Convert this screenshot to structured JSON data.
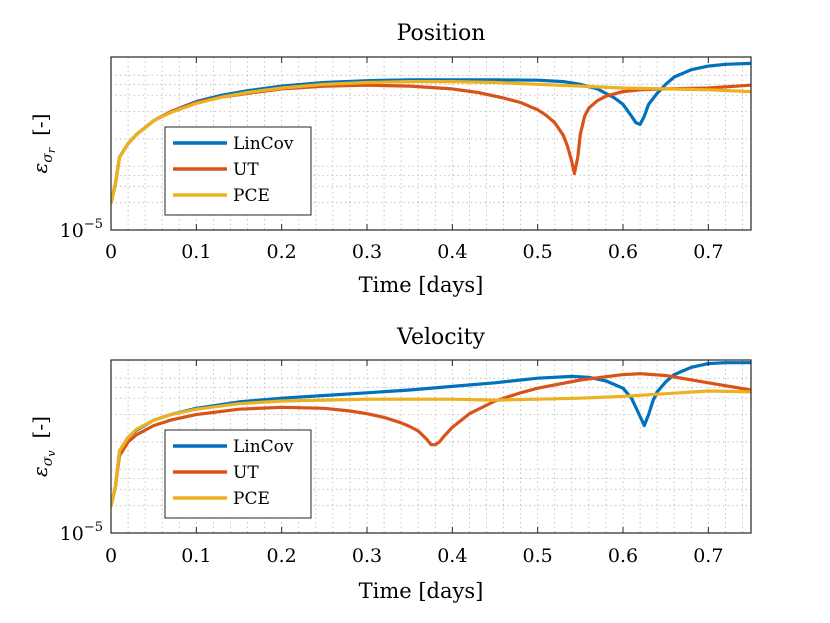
{
  "chart_data": [
    {
      "type": "line",
      "title": "Position",
      "xlabel": "Time [days]",
      "ylabel_main": "ε",
      "ylabel_sub1": "σ",
      "ylabel_sub2": "r",
      "ylabel_units": "[-]",
      "y_scale": "log",
      "xlim": [
        0,
        0.75
      ],
      "x_ticks": [
        "0",
        "0.1",
        "0.2",
        "0.3",
        "0.4",
        "0.5",
        "0.6",
        "0.7"
      ],
      "y_tick_base": "10",
      "y_tick_exp": "−5",
      "ylim_log10": [
        -5,
        -3.1
      ],
      "legend_position": "lower-left",
      "series": [
        {
          "name": "LinCov",
          "color": "#0072BD",
          "x": [
            0,
            0.005,
            0.01,
            0.02,
            0.03,
            0.05,
            0.07,
            0.1,
            0.13,
            0.16,
            0.2,
            0.25,
            0.3,
            0.35,
            0.4,
            0.45,
            0.5,
            0.53,
            0.55,
            0.57,
            0.59,
            0.6,
            0.61,
            0.615,
            0.62,
            0.625,
            0.63,
            0.64,
            0.65,
            0.66,
            0.68,
            0.7,
            0.72,
            0.75
          ],
          "y": [
            -4.7,
            -4.5,
            -4.2,
            -4.05,
            -3.95,
            -3.8,
            -3.7,
            -3.59,
            -3.52,
            -3.47,
            -3.42,
            -3.38,
            -3.36,
            -3.35,
            -3.35,
            -3.35,
            -3.355,
            -3.37,
            -3.4,
            -3.45,
            -3.55,
            -3.62,
            -3.75,
            -3.82,
            -3.84,
            -3.75,
            -3.62,
            -3.5,
            -3.4,
            -3.32,
            -3.24,
            -3.2,
            -3.18,
            -3.17
          ]
        },
        {
          "name": "UT",
          "color": "#D95319",
          "x": [
            0,
            0.005,
            0.01,
            0.02,
            0.03,
            0.05,
            0.07,
            0.1,
            0.13,
            0.16,
            0.2,
            0.25,
            0.3,
            0.35,
            0.4,
            0.43,
            0.46,
            0.48,
            0.5,
            0.51,
            0.52,
            0.53,
            0.535,
            0.54,
            0.543,
            0.547,
            0.55,
            0.555,
            0.56,
            0.57,
            0.58,
            0.6,
            0.62,
            0.65,
            0.7,
            0.75
          ],
          "y": [
            -4.7,
            -4.5,
            -4.2,
            -4.05,
            -3.95,
            -3.8,
            -3.7,
            -3.6,
            -3.54,
            -3.5,
            -3.45,
            -3.42,
            -3.41,
            -3.42,
            -3.45,
            -3.49,
            -3.55,
            -3.6,
            -3.68,
            -3.74,
            -3.82,
            -3.96,
            -4.08,
            -4.25,
            -4.38,
            -4.2,
            -3.95,
            -3.75,
            -3.66,
            -3.58,
            -3.53,
            -3.48,
            -3.46,
            -3.45,
            -3.44,
            -3.41
          ]
        },
        {
          "name": "PCE",
          "color": "#EDB120",
          "x": [
            0,
            0.005,
            0.01,
            0.02,
            0.03,
            0.05,
            0.07,
            0.1,
            0.13,
            0.16,
            0.2,
            0.25,
            0.3,
            0.35,
            0.4,
            0.45,
            0.5,
            0.55,
            0.6,
            0.65,
            0.7,
            0.75
          ],
          "y": [
            -4.7,
            -4.5,
            -4.2,
            -4.05,
            -3.95,
            -3.8,
            -3.71,
            -3.61,
            -3.54,
            -3.49,
            -3.44,
            -3.4,
            -3.38,
            -3.37,
            -3.37,
            -3.38,
            -3.4,
            -3.42,
            -3.44,
            -3.45,
            -3.46,
            -3.48
          ]
        }
      ]
    },
    {
      "type": "line",
      "title": "Velocity",
      "xlabel": "Time [days]",
      "ylabel_main": "ε",
      "ylabel_sub1": "σ",
      "ylabel_sub2": "v",
      "ylabel_units": "[-]",
      "y_scale": "log",
      "xlim": [
        0,
        0.75
      ],
      "x_ticks": [
        "0",
        "0.1",
        "0.2",
        "0.3",
        "0.4",
        "0.5",
        "0.6",
        "0.7"
      ],
      "y_tick_base": "10",
      "y_tick_exp": "−5",
      "ylim_log10": [
        -5,
        -3.1
      ],
      "legend_position": "lower-left",
      "series": [
        {
          "name": "LinCov",
          "color": "#0072BD",
          "x": [
            0,
            0.005,
            0.01,
            0.02,
            0.03,
            0.05,
            0.07,
            0.1,
            0.15,
            0.2,
            0.25,
            0.3,
            0.35,
            0.4,
            0.45,
            0.5,
            0.54,
            0.56,
            0.58,
            0.6,
            0.61,
            0.62,
            0.625,
            0.63,
            0.635,
            0.64,
            0.65,
            0.66,
            0.68,
            0.7,
            0.72,
            0.75
          ],
          "y": [
            -4.7,
            -4.5,
            -4.1,
            -3.95,
            -3.87,
            -3.76,
            -3.7,
            -3.63,
            -3.56,
            -3.52,
            -3.49,
            -3.46,
            -3.43,
            -3.39,
            -3.35,
            -3.3,
            -3.28,
            -3.29,
            -3.33,
            -3.41,
            -3.52,
            -3.72,
            -3.82,
            -3.7,
            -3.55,
            -3.45,
            -3.34,
            -3.26,
            -3.18,
            -3.14,
            -3.13,
            -3.13
          ]
        },
        {
          "name": "UT",
          "color": "#D95319",
          "x": [
            0,
            0.005,
            0.01,
            0.02,
            0.03,
            0.05,
            0.07,
            0.1,
            0.15,
            0.2,
            0.25,
            0.28,
            0.3,
            0.32,
            0.34,
            0.35,
            0.36,
            0.37,
            0.375,
            0.38,
            0.385,
            0.39,
            0.4,
            0.42,
            0.45,
            0.48,
            0.5,
            0.55,
            0.6,
            0.62,
            0.65,
            0.7,
            0.75
          ],
          "y": [
            -4.7,
            -4.5,
            -4.15,
            -4.0,
            -3.92,
            -3.82,
            -3.76,
            -3.7,
            -3.64,
            -3.62,
            -3.63,
            -3.66,
            -3.69,
            -3.73,
            -3.79,
            -3.83,
            -3.88,
            -3.97,
            -4.03,
            -4.03,
            -4.0,
            -3.94,
            -3.84,
            -3.69,
            -3.55,
            -3.46,
            -3.41,
            -3.32,
            -3.26,
            -3.25,
            -3.27,
            -3.35,
            -3.43
          ]
        },
        {
          "name": "PCE",
          "color": "#EDB120",
          "x": [
            0,
            0.005,
            0.01,
            0.02,
            0.03,
            0.05,
            0.07,
            0.1,
            0.15,
            0.2,
            0.25,
            0.3,
            0.35,
            0.4,
            0.45,
            0.5,
            0.55,
            0.6,
            0.65,
            0.7,
            0.75
          ],
          "y": [
            -4.7,
            -4.5,
            -4.1,
            -3.95,
            -3.86,
            -3.76,
            -3.7,
            -3.64,
            -3.58,
            -3.55,
            -3.54,
            -3.53,
            -3.53,
            -3.53,
            -3.54,
            -3.53,
            -3.52,
            -3.5,
            -3.47,
            -3.44,
            -3.45
          ]
        }
      ]
    }
  ]
}
